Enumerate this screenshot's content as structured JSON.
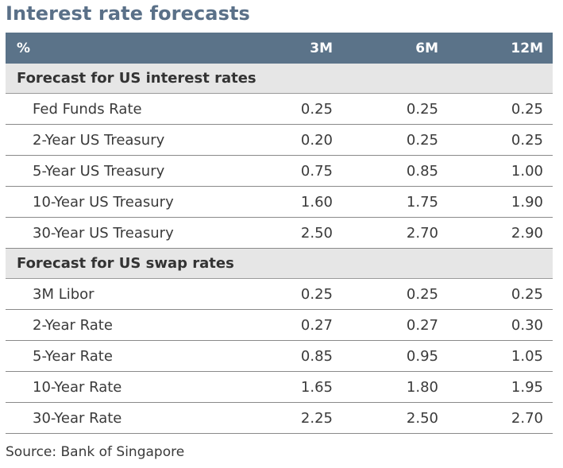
{
  "title": "Interest rate forecasts",
  "header": {
    "unit": "%",
    "columns": [
      "3M",
      "6M",
      "12M"
    ]
  },
  "sections": [
    {
      "label": "Forecast for US interest rates",
      "rows": [
        {
          "label": "Fed Funds Rate",
          "values": [
            "0.25",
            "0.25",
            "0.25"
          ]
        },
        {
          "label": "2-Year US Treasury",
          "values": [
            "0.20",
            "0.25",
            "0.25"
          ]
        },
        {
          "label": "5-Year US Treasury",
          "values": [
            "0.75",
            "0.85",
            "1.00"
          ]
        },
        {
          "label": "10-Year US Treasury",
          "values": [
            "1.60",
            "1.75",
            "1.90"
          ]
        },
        {
          "label": "30-Year US Treasury",
          "values": [
            "2.50",
            "2.70",
            "2.90"
          ]
        }
      ]
    },
    {
      "label": "Forecast for US swap rates",
      "rows": [
        {
          "label": "3M Libor",
          "values": [
            "0.25",
            "0.25",
            "0.25"
          ]
        },
        {
          "label": "2-Year Rate",
          "values": [
            "0.27",
            "0.27",
            "0.30"
          ]
        },
        {
          "label": "5-Year Rate",
          "values": [
            "0.85",
            "0.95",
            "1.05"
          ]
        },
        {
          "label": "10-Year Rate",
          "values": [
            "1.65",
            "1.80",
            "1.95"
          ]
        },
        {
          "label": "30-Year Rate",
          "values": [
            "2.25",
            "2.50",
            "2.70"
          ]
        }
      ]
    }
  ],
  "source": "Source: Bank of Singapore",
  "colors": {
    "title": "#5a7088",
    "header_background": "#5b7389",
    "section_background": "#e6e6e6"
  }
}
